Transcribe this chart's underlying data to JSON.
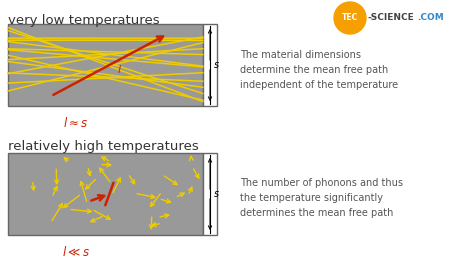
{
  "bg_color": "#ffffff",
  "box_color": "#999999",
  "box_edge_color": "#666666",
  "yellow_color": "#eecc00",
  "red_color": "#cc2200",
  "title1": "very low temperatures",
  "title2": "relatively high temperatures",
  "label1": "$l\\approx s$",
  "label2": "$l\\ll s$",
  "text1": "The material dimensions\ndetermine the mean free path\nindependent of the temperature",
  "text2": "The number of phonons and thus\nthe temperature significantly\ndetermines the mean free path"
}
